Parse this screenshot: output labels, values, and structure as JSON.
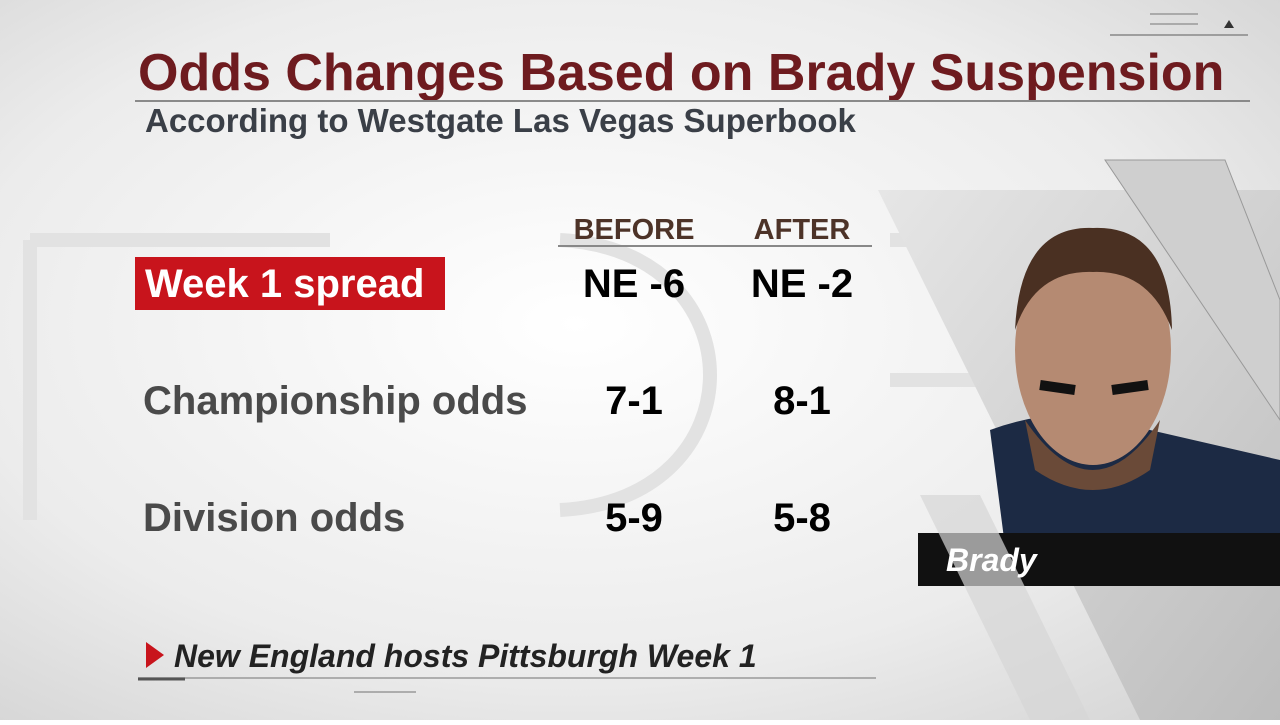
{
  "header": {
    "title": "Odds Changes Based on Brady Suspension",
    "subtitle": "According to Westgate Las Vegas Superbook"
  },
  "table": {
    "columns": [
      "BEFORE",
      "AFTER"
    ],
    "rows": [
      [
        "Week 1 spread",
        "NE -6",
        "NE -2"
      ],
      [
        "Championship odds",
        "7-1",
        "8-1"
      ],
      [
        "Division odds",
        "5-9",
        "5-8"
      ]
    ]
  },
  "footnote": "New England hosts Pittsburgh Week 1",
  "photo": {
    "caption": "Brady"
  }
}
